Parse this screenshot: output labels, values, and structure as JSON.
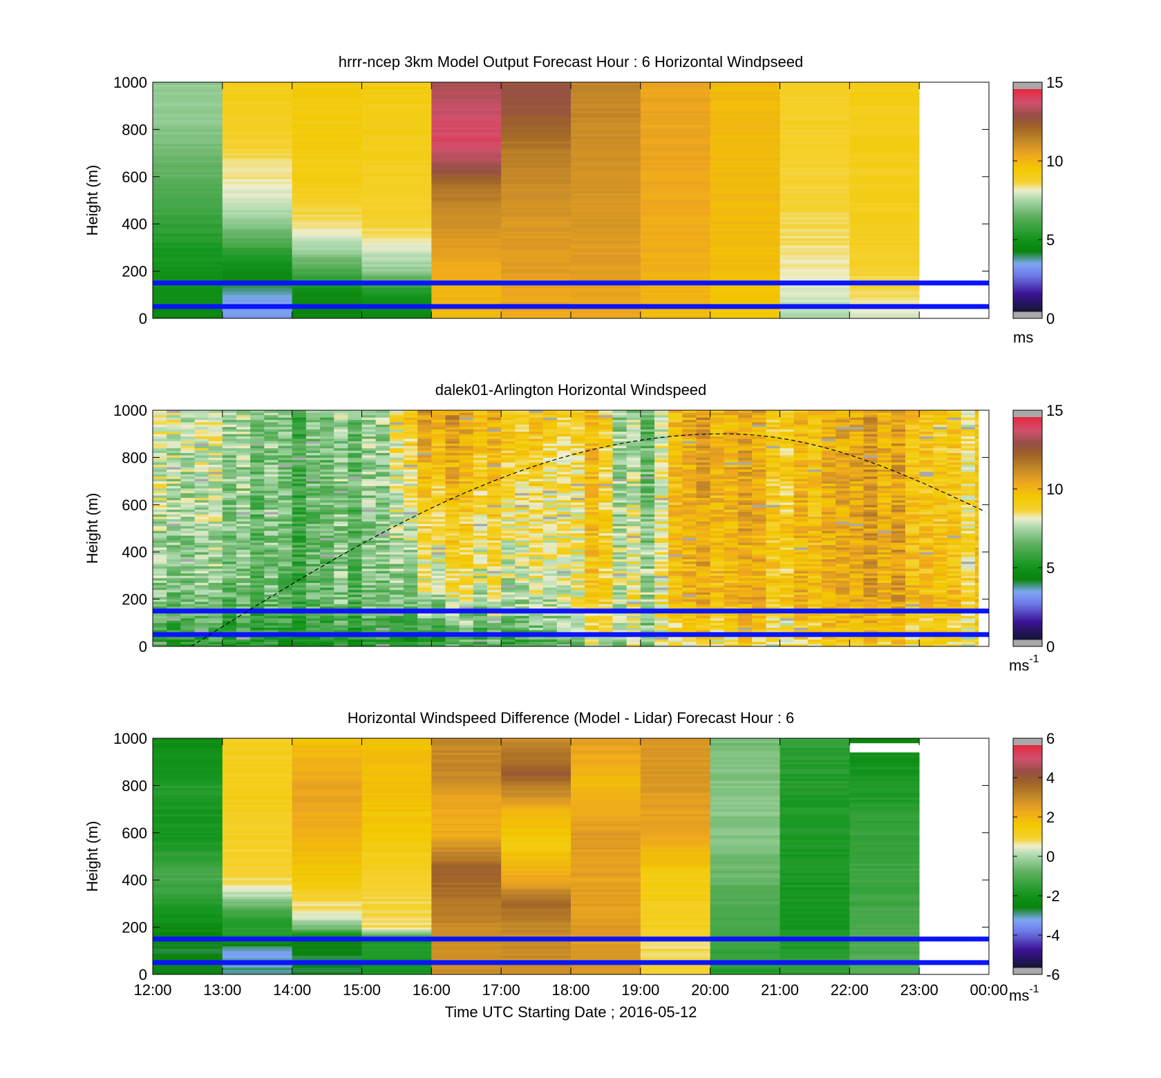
{
  "figure": {
    "colors": {
      "line_blue": "#0a14ff",
      "sun_line": "#000000",
      "nan": "#a9a9a9",
      "colormap": [
        [
          "#141432",
          0.0
        ],
        [
          "#3c1496",
          0.08
        ],
        [
          "#6e78e6",
          0.16
        ],
        [
          "#7da7f2",
          0.215
        ],
        [
          "#0a820a",
          0.27
        ],
        [
          "#14961e",
          0.33
        ],
        [
          "#5fb05f",
          0.43
        ],
        [
          "#b4dcb4",
          0.51
        ],
        [
          "#eeeecd",
          0.545
        ],
        [
          "#f5d232",
          0.58
        ],
        [
          "#f2c800",
          0.64
        ],
        [
          "#f0a81e",
          0.7
        ],
        [
          "#c88c28",
          0.76
        ],
        [
          "#a06428",
          0.83
        ],
        [
          "#965046",
          0.88
        ],
        [
          "#d2506e",
          0.94
        ],
        [
          "#e6283c",
          1.0
        ]
      ]
    },
    "x_tick_labels": [
      "12:00",
      "13:00",
      "14:00",
      "15:00",
      "16:00",
      "17:00",
      "18:00",
      "19:00",
      "20:00",
      "21:00",
      "22:00",
      "23:00",
      "00:00"
    ],
    "xlabel": "Time UTC  Starting Date ; 2016-05-12"
  },
  "chart_data": [
    {
      "type": "heatmap",
      "title": "hrrr-ncep 3km Model Output   Forecast Hour : 6 Horizontal Windpseed",
      "ylabel": "Height (m)",
      "ylim": [
        0,
        1000
      ],
      "y_ticks": [
        "0",
        "200",
        "400",
        "600",
        "800",
        "1000"
      ],
      "xlim_hours": [
        12,
        24
      ],
      "clim": [
        0,
        15
      ],
      "colorbar_ticks": [
        "0",
        "5",
        "10",
        "15"
      ],
      "colorbar_unit": "ms",
      "colorbar_unit_sup": "",
      "hlines_m": [
        150,
        50
      ],
      "columns": [
        {
          "t0": 12,
          "t1": 13,
          "profile": [
            [
              0,
              4.2
            ],
            [
              100,
              4.6
            ],
            [
              200,
              4.8
            ],
            [
              300,
              5.0
            ],
            [
              400,
              5.6
            ],
            [
              500,
              6.0
            ],
            [
              600,
              6.4
            ],
            [
              700,
              6.8
            ],
            [
              800,
              7.0
            ],
            [
              900,
              7.2
            ],
            [
              1000,
              7.2
            ]
          ]
        },
        {
          "t0": 13,
          "t1": 14,
          "profile": [
            [
              0,
              3.0
            ],
            [
              100,
              3.2
            ],
            [
              150,
              4.2
            ],
            [
              250,
              5.0
            ],
            [
              350,
              6.5
            ],
            [
              450,
              7.5
            ],
            [
              550,
              8.2
            ],
            [
              650,
              8.5
            ],
            [
              750,
              8.8
            ],
            [
              900,
              9.1
            ],
            [
              1000,
              9.1
            ]
          ]
        },
        {
          "t0": 14,
          "t1": 15,
          "profile": [
            [
              0,
              4.2
            ],
            [
              100,
              4.4
            ],
            [
              200,
              6.0
            ],
            [
              300,
              7.5
            ],
            [
              400,
              8.5
            ],
            [
              600,
              9.3
            ],
            [
              800,
              9.4
            ],
            [
              1000,
              9.4
            ]
          ]
        },
        {
          "t0": 15,
          "t1": 16,
          "profile": [
            [
              0,
              4.4
            ],
            [
              100,
              4.8
            ],
            [
              200,
              7.2
            ],
            [
              300,
              8.0
            ],
            [
              400,
              8.8
            ],
            [
              600,
              9.0
            ],
            [
              800,
              9.2
            ],
            [
              1000,
              9.3
            ]
          ]
        },
        {
          "t0": 16,
          "t1": 17,
          "profile": [
            [
              0,
              10.0
            ],
            [
              200,
              10.3
            ],
            [
              400,
              11.2
            ],
            [
              550,
              12.0
            ],
            [
              650,
              13.5
            ],
            [
              750,
              14.4
            ],
            [
              900,
              13.8
            ],
            [
              1000,
              13.5
            ]
          ]
        },
        {
          "t0": 17,
          "t1": 18,
          "profile": [
            [
              0,
              10.4
            ],
            [
              200,
              10.8
            ],
            [
              400,
              11.0
            ],
            [
              550,
              11.3
            ],
            [
              700,
              11.8
            ],
            [
              800,
              12.4
            ],
            [
              900,
              13.0
            ],
            [
              1000,
              13.0
            ]
          ]
        },
        {
          "t0": 18,
          "t1": 19,
          "profile": [
            [
              0,
              10.5
            ],
            [
              200,
              10.8
            ],
            [
              400,
              11.0
            ],
            [
              600,
              11.2
            ],
            [
              800,
              11.4
            ],
            [
              1000,
              11.6
            ]
          ]
        },
        {
          "t0": 19,
          "t1": 20,
          "profile": [
            [
              0,
              10.0
            ],
            [
              200,
              10.3
            ],
            [
              400,
              10.4
            ],
            [
              600,
              10.5
            ],
            [
              800,
              10.6
            ],
            [
              1000,
              10.6
            ]
          ]
        },
        {
          "t0": 20,
          "t1": 21,
          "profile": [
            [
              0,
              9.5
            ],
            [
              200,
              9.9
            ],
            [
              400,
              10.0
            ],
            [
              600,
              10.0
            ],
            [
              800,
              10.0
            ],
            [
              1000,
              10.0
            ]
          ]
        },
        {
          "t0": 21,
          "t1": 22,
          "profile": [
            [
              0,
              7.6
            ],
            [
              100,
              7.9
            ],
            [
              200,
              8.3
            ],
            [
              400,
              8.6
            ],
            [
              600,
              8.8
            ],
            [
              800,
              8.9
            ],
            [
              1000,
              9.0
            ]
          ]
        },
        {
          "t0": 22,
          "t1": 23,
          "profile": [
            [
              0,
              7.8
            ],
            [
              100,
              8.5
            ],
            [
              300,
              9.0
            ],
            [
              600,
              9.1
            ],
            [
              1000,
              9.2
            ]
          ]
        }
      ]
    },
    {
      "type": "heatmap",
      "title": "dalek01-Arlington  Horizontal Windspeed",
      "ylabel": "Height (m)",
      "ylim": [
        0,
        1000
      ],
      "y_ticks": [
        "0",
        "200",
        "400",
        "600",
        "800",
        "1000"
      ],
      "xlim_hours": [
        12,
        24
      ],
      "clim": [
        0,
        15
      ],
      "colorbar_ticks": [
        "0",
        "5",
        "10",
        "15"
      ],
      "colorbar_unit": "ms",
      "colorbar_unit_sup": "-1",
      "hlines_m": [
        150,
        50
      ],
      "data_end_hour": 23.85,
      "boundary_layer_curve": {
        "start_hour": 12.55,
        "peak_hour": 20.2,
        "peak_height_m": 900,
        "end_hour": 23.95,
        "end_height_m": 570
      },
      "column_anchors": [
        [
          12.0,
          8.8,
          7.0
        ],
        [
          12.5,
          8.5,
          6.8
        ],
        [
          13.0,
          7.8,
          6.2
        ],
        [
          13.5,
          6.5,
          5.8
        ],
        [
          14.0,
          6.3,
          5.8
        ],
        [
          14.5,
          6.5,
          5.9
        ],
        [
          15.0,
          6.8,
          6.2
        ],
        [
          15.4,
          7.2,
          6.3
        ],
        [
          15.6,
          9.2,
          5.6
        ],
        [
          16.0,
          10.5,
          6.2
        ],
        [
          16.5,
          10.4,
          6.8
        ],
        [
          17.0,
          10.0,
          7.0
        ],
        [
          17.5,
          9.9,
          7.5
        ],
        [
          18.0,
          9.6,
          8.4
        ],
        [
          18.5,
          9.0,
          9.0
        ],
        [
          18.8,
          7.2,
          8.8
        ],
        [
          19.2,
          7.0,
          8.6
        ],
        [
          19.5,
          9.2,
          9.0
        ],
        [
          20.0,
          10.8,
          10.0
        ],
        [
          20.5,
          10.5,
          10.2
        ],
        [
          21.0,
          10.0,
          10.0
        ],
        [
          21.5,
          9.8,
          10.0
        ],
        [
          22.0,
          10.0,
          10.0
        ],
        [
          22.5,
          10.4,
          10.2
        ],
        [
          23.0,
          9.6,
          10.0
        ],
        [
          23.5,
          9.0,
          9.6
        ],
        [
          23.85,
          9.0,
          9.6
        ]
      ]
    },
    {
      "type": "heatmap",
      "title": "Horizontal Windspeed Difference (Model - Lidar) Forecast Hour : 6",
      "ylabel": "Height (m)",
      "ylim": [
        0,
        1000
      ],
      "y_ticks": [
        "0",
        "200",
        "400",
        "600",
        "800",
        "1000"
      ],
      "xlim_hours": [
        12,
        24
      ],
      "clim": [
        -6,
        6
      ],
      "colorbar_ticks": [
        "-6",
        "-4",
        "-2",
        "0",
        "2",
        "4",
        "6"
      ],
      "colorbar_unit": "ms",
      "colorbar_unit_sup": "-1",
      "hlines_m": [
        150,
        50
      ],
      "columns": [
        {
          "t0": 12,
          "t1": 13,
          "profile": [
            [
              0,
              -2.6
            ],
            [
              100,
              -2.8
            ],
            [
              200,
              -2.4
            ],
            [
              300,
              -1.8
            ],
            [
              400,
              -1.2
            ],
            [
              500,
              -1.6
            ],
            [
              600,
              -2.1
            ],
            [
              700,
              -2.0
            ],
            [
              800,
              -1.8
            ],
            [
              900,
              -2.2
            ],
            [
              1000,
              -2.3
            ]
          ]
        },
        {
          "t0": 13,
          "t1": 14,
          "profile": [
            [
              0,
              -3.0
            ],
            [
              100,
              -3.5
            ],
            [
              150,
              -2.0
            ],
            [
              250,
              -1.5
            ],
            [
              330,
              0.0
            ],
            [
              400,
              0.9
            ],
            [
              600,
              1.2
            ],
            [
              800,
              1.3
            ],
            [
              1000,
              1.2
            ]
          ]
        },
        {
          "t0": 14,
          "t1": 15,
          "profile": [
            [
              0,
              -2.8
            ],
            [
              150,
              -2.8
            ],
            [
              200,
              -0.5
            ],
            [
              250,
              0.5
            ],
            [
              400,
              1.6
            ],
            [
              600,
              2.2
            ],
            [
              800,
              2.5
            ],
            [
              1000,
              1.8
            ]
          ]
        },
        {
          "t0": 15,
          "t1": 16,
          "profile": [
            [
              0,
              -2.0
            ],
            [
              150,
              -1.8
            ],
            [
              200,
              0.8
            ],
            [
              400,
              1.1
            ],
            [
              600,
              1.6
            ],
            [
              800,
              1.9
            ],
            [
              1000,
              1.8
            ]
          ]
        },
        {
          "t0": 16,
          "t1": 17,
          "profile": [
            [
              0,
              3.0
            ],
            [
              200,
              3.1
            ],
            [
              350,
              3.8
            ],
            [
              450,
              4.0
            ],
            [
              600,
              2.3
            ],
            [
              750,
              2.5
            ],
            [
              850,
              3.2
            ],
            [
              1000,
              3.2
            ]
          ]
        },
        {
          "t0": 17,
          "t1": 18,
          "profile": [
            [
              0,
              3.0
            ],
            [
              200,
              3.2
            ],
            [
              300,
              3.8
            ],
            [
              400,
              2.5
            ],
            [
              550,
              1.5
            ],
            [
              700,
              2.2
            ],
            [
              850,
              4.2
            ],
            [
              950,
              3.4
            ],
            [
              1000,
              3.0
            ]
          ]
        },
        {
          "t0": 18,
          "t1": 19,
          "profile": [
            [
              0,
              2.8
            ],
            [
              200,
              2.7
            ],
            [
              400,
              2.6
            ],
            [
              600,
              2.7
            ],
            [
              800,
              2.0
            ],
            [
              1000,
              2.6
            ]
          ]
        },
        {
          "t0": 19,
          "t1": 20,
          "profile": [
            [
              0,
              1.0
            ],
            [
              100,
              0.8
            ],
            [
              200,
              1.2
            ],
            [
              400,
              1.4
            ],
            [
              600,
              2.4
            ],
            [
              800,
              2.8
            ],
            [
              1000,
              2.8
            ]
          ]
        },
        {
          "t0": 20,
          "t1": 21,
          "profile": [
            [
              0,
              -1.8
            ],
            [
              200,
              -1.3
            ],
            [
              400,
              -0.8
            ],
            [
              600,
              -0.4
            ],
            [
              800,
              -0.4
            ],
            [
              1000,
              -0.6
            ]
          ]
        },
        {
          "t0": 21,
          "t1": 22,
          "profile": [
            [
              0,
              -1.6
            ],
            [
              200,
              -2.0
            ],
            [
              400,
              -2.0
            ],
            [
              600,
              -1.9
            ],
            [
              800,
              -1.8
            ],
            [
              1000,
              -1.6
            ]
          ]
        },
        {
          "t0": 22,
          "t1": 23,
          "profile": [
            [
              0,
              -1.0
            ],
            [
              200,
              -1.2
            ],
            [
              400,
              -1.4
            ],
            [
              600,
              -1.5
            ],
            [
              800,
              -1.9
            ],
            [
              930,
              -2.2
            ],
            [
              960,
              null
            ],
            [
              1000,
              -2.6
            ]
          ]
        }
      ]
    }
  ]
}
